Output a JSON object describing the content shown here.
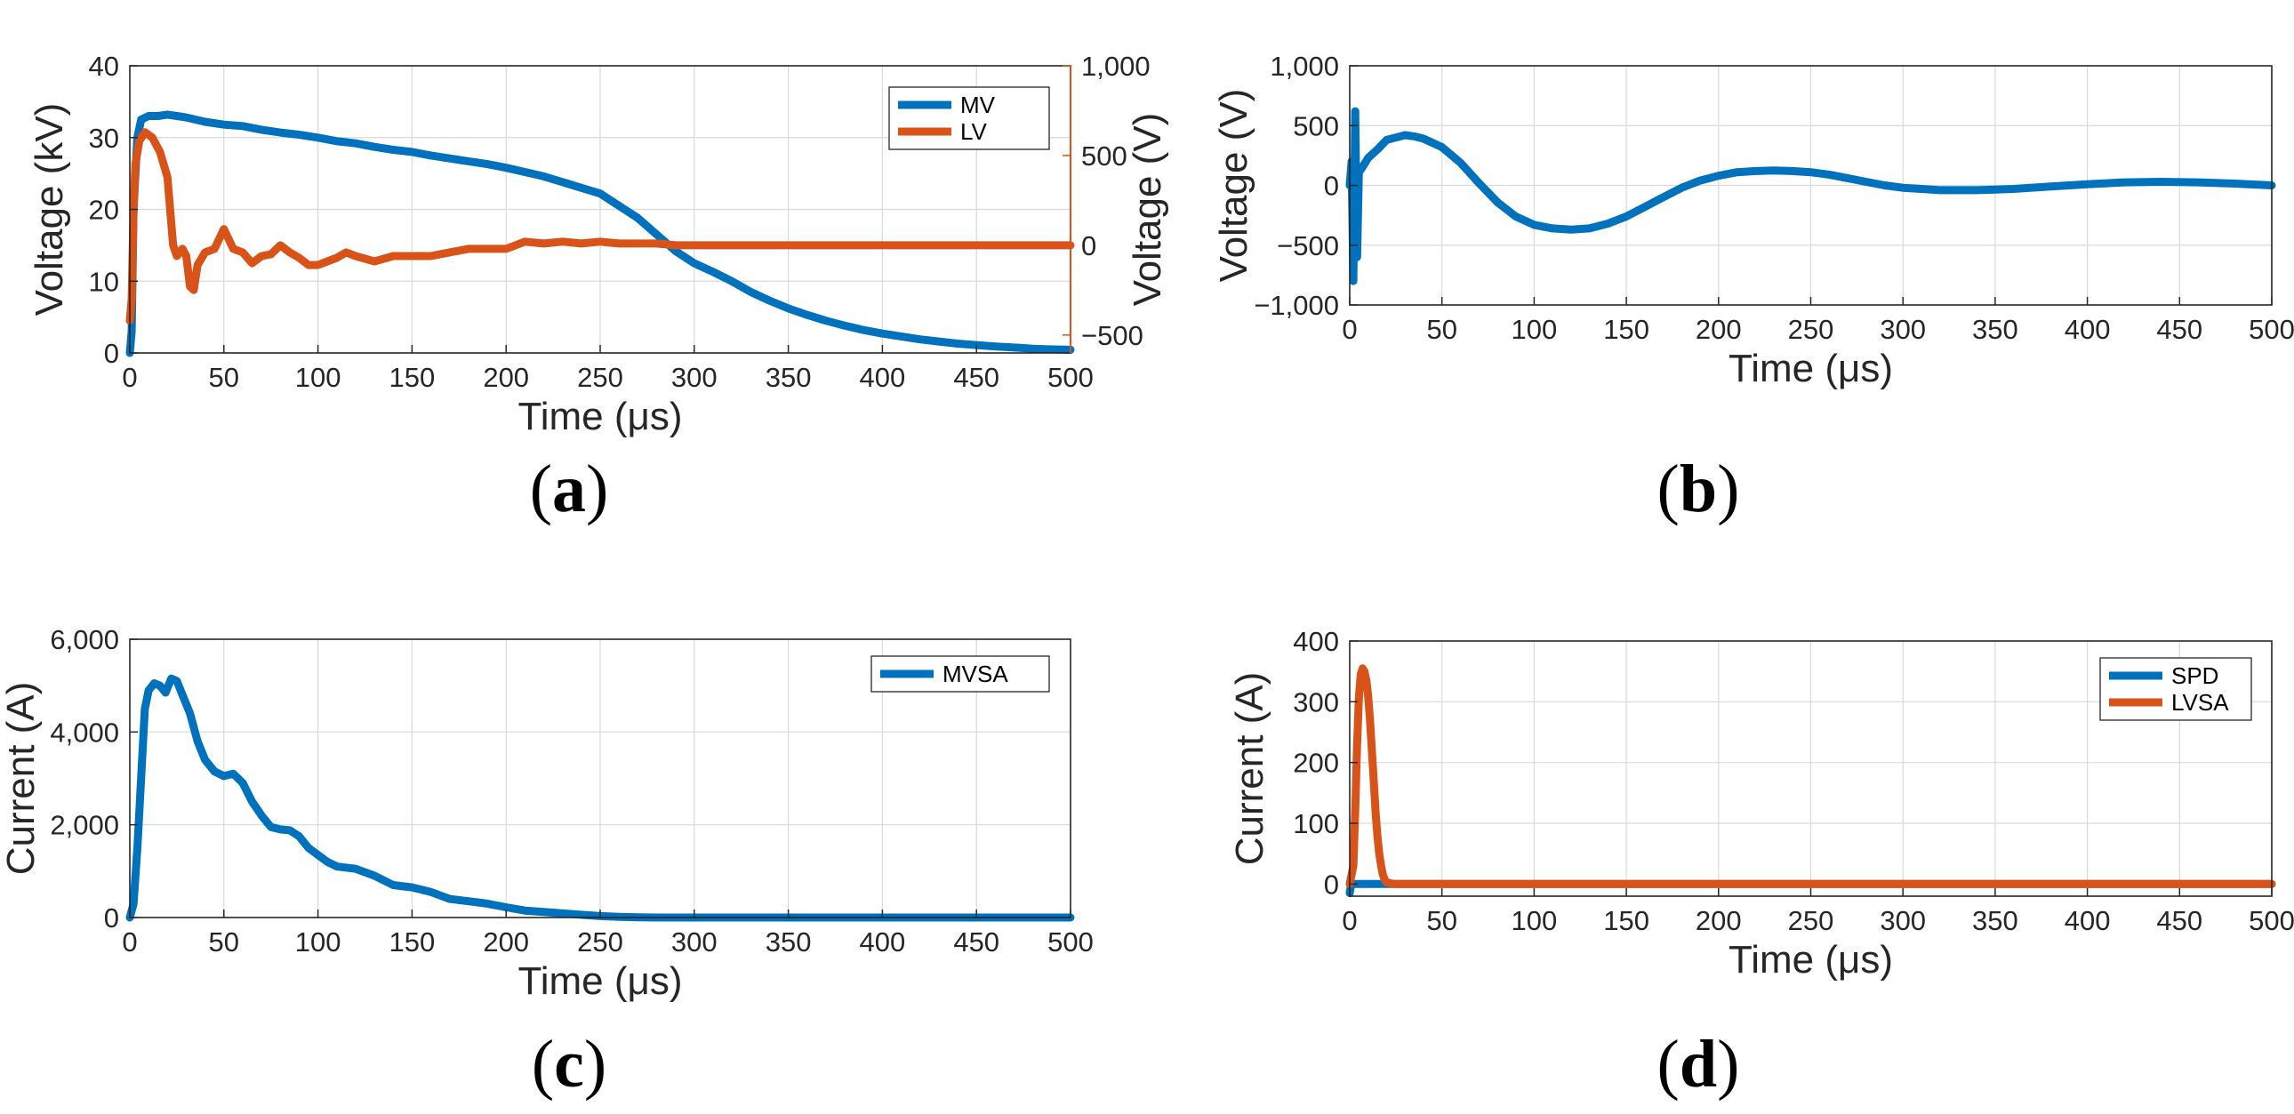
{
  "colors": {
    "blue": "#0072bd",
    "orange": "#d95319",
    "axis": "#262626",
    "grid": "#d9d9d9"
  },
  "chart_data": [
    {
      "panel": "a",
      "panel_label": "a",
      "type": "line",
      "xlabel": "Time (μs)",
      "ylabel": "Voltage (kV)",
      "ylabel_right": "Voltage (V)",
      "xlim": [
        0,
        500
      ],
      "ylim": [
        0,
        40
      ],
      "ylim_right": [
        -600,
        1000
      ],
      "xticks": [
        0,
        50,
        100,
        150,
        200,
        250,
        300,
        350,
        400,
        450,
        500
      ],
      "xtick_labels": [
        "0",
        "50",
        "100",
        "150",
        "200",
        "250",
        "300",
        "350",
        "400",
        "450",
        "500"
      ],
      "yticks": [
        0,
        10,
        20,
        30,
        40
      ],
      "ytick_labels": [
        "0",
        "10",
        "20",
        "30",
        "40"
      ],
      "yticks_right": [
        -500,
        0,
        500,
        1000
      ],
      "ytick_labels_right": [
        "−500",
        "0",
        "500",
        "1,000"
      ],
      "grid": true,
      "legend_position": "top-right",
      "series": [
        {
          "name": "MV",
          "color": "#0072bd",
          "axis": "left",
          "x": [
            0,
            1,
            2,
            4,
            6,
            10,
            15,
            20,
            25,
            30,
            40,
            50,
            60,
            70,
            80,
            90,
            100,
            110,
            120,
            130,
            140,
            150,
            160,
            170,
            180,
            190,
            200,
            210,
            220,
            230,
            240,
            250,
            260,
            270,
            280,
            290,
            300,
            310,
            320,
            330,
            340,
            350,
            360,
            370,
            380,
            390,
            400,
            410,
            420,
            430,
            440,
            450,
            460,
            470,
            480,
            490,
            500
          ],
          "y": [
            0,
            3,
            20,
            30,
            32.5,
            33,
            33,
            33.2,
            33,
            32.8,
            32.2,
            31.8,
            31.6,
            31.1,
            30.7,
            30.4,
            30,
            29.5,
            29.2,
            28.7,
            28.3,
            28,
            27.5,
            27.1,
            26.7,
            26.3,
            25.8,
            25.2,
            24.6,
            23.8,
            23,
            22.2,
            20.5,
            18.8,
            16.5,
            14.2,
            12.5,
            11.3,
            10,
            8.5,
            7.3,
            6.2,
            5.3,
            4.5,
            3.8,
            3.2,
            2.7,
            2.3,
            1.9,
            1.6,
            1.3,
            1.1,
            0.9,
            0.75,
            0.6,
            0.5,
            0.45
          ]
        },
        {
          "name": "LV",
          "color": "#d95319",
          "axis": "right",
          "x": [
            0,
            1,
            2,
            3,
            5,
            8,
            12,
            16,
            20,
            23,
            25,
            28,
            30,
            32,
            34,
            36,
            40,
            45,
            50,
            55,
            60,
            65,
            70,
            75,
            80,
            85,
            90,
            95,
            100,
            105,
            110,
            115,
            120,
            130,
            140,
            150,
            160,
            170,
            180,
            190,
            200,
            210,
            220,
            230,
            240,
            250,
            260,
            270,
            280,
            290,
            300,
            320,
            340,
            360,
            380,
            400,
            420,
            440,
            460,
            480,
            500
          ],
          "y": [
            -420,
            -300,
            200,
            450,
            580,
            630,
            600,
            520,
            380,
            0,
            -60,
            -20,
            -60,
            -230,
            -250,
            -110,
            -40,
            -20,
            90,
            -20,
            -40,
            -100,
            -60,
            -50,
            0,
            -40,
            -70,
            -110,
            -110,
            -90,
            -70,
            -40,
            -60,
            -90,
            -60,
            -60,
            -60,
            -40,
            -20,
            -20,
            -20,
            20,
            10,
            20,
            10,
            20,
            10,
            10,
            10,
            0,
            0,
            0,
            0,
            0,
            0,
            0,
            0,
            0,
            0,
            0,
            0
          ]
        }
      ]
    },
    {
      "panel": "b",
      "panel_label": "b",
      "type": "line",
      "xlabel": "Time (μs)",
      "ylabel": "Voltage (V)",
      "xlim": [
        0,
        500
      ],
      "ylim": [
        -1000,
        1000
      ],
      "xticks": [
        0,
        50,
        100,
        150,
        200,
        250,
        300,
        350,
        400,
        450,
        500
      ],
      "xtick_labels": [
        "0",
        "50",
        "100",
        "150",
        "200",
        "250",
        "300",
        "350",
        "400",
        "450",
        "500"
      ],
      "yticks": [
        -1000,
        -500,
        0,
        500,
        1000
      ],
      "ytick_labels": [
        "−1,000",
        "−500",
        "0",
        "500",
        "1,000"
      ],
      "grid": true,
      "series": [
        {
          "name": "",
          "color": "#0072bd",
          "x": [
            0,
            1,
            2,
            3,
            4,
            5,
            6,
            8,
            10,
            15,
            20,
            25,
            30,
            35,
            40,
            50,
            60,
            70,
            80,
            90,
            100,
            110,
            120,
            130,
            140,
            150,
            160,
            170,
            180,
            190,
            200,
            210,
            220,
            230,
            240,
            250,
            260,
            270,
            280,
            290,
            300,
            310,
            320,
            330,
            340,
            350,
            360,
            380,
            400,
            420,
            440,
            460,
            480,
            500
          ],
          "y": [
            0,
            200,
            -800,
            620,
            -600,
            150,
            130,
            180,
            230,
            300,
            380,
            400,
            420,
            410,
            390,
            320,
            190,
            20,
            -140,
            -260,
            -330,
            -360,
            -370,
            -360,
            -320,
            -260,
            -180,
            -100,
            -20,
            40,
            80,
            110,
            120,
            125,
            120,
            110,
            90,
            60,
            30,
            0,
            -20,
            -30,
            -40,
            -40,
            -40,
            -35,
            -30,
            -10,
            10,
            25,
            30,
            25,
            15,
            0
          ]
        }
      ]
    },
    {
      "panel": "c",
      "panel_label": "c",
      "type": "line",
      "xlabel": "Time (μs)",
      "ylabel": "Current (A)",
      "xlim": [
        0,
        500
      ],
      "ylim": [
        0,
        6000
      ],
      "xticks": [
        0,
        50,
        100,
        150,
        200,
        250,
        300,
        350,
        400,
        450,
        500
      ],
      "xtick_labels": [
        "0",
        "50",
        "100",
        "150",
        "200",
        "250",
        "300",
        "350",
        "400",
        "450",
        "500"
      ],
      "yticks": [
        0,
        2000,
        4000,
        6000
      ],
      "ytick_labels": [
        "0",
        "2,000",
        "4,000",
        "6,000"
      ],
      "grid": true,
      "legend_position": "top-right",
      "series": [
        {
          "name": "MVSA",
          "color": "#0072bd",
          "x": [
            0,
            2,
            4,
            6,
            8,
            10,
            13,
            16,
            19,
            22,
            25,
            28,
            32,
            36,
            40,
            45,
            50,
            55,
            60,
            65,
            70,
            75,
            80,
            85,
            90,
            95,
            100,
            105,
            110,
            120,
            130,
            140,
            150,
            160,
            170,
            180,
            190,
            200,
            210,
            220,
            230,
            240,
            250,
            260,
            270,
            280,
            300,
            350,
            400,
            450,
            500
          ],
          "y": [
            0,
            300,
            1500,
            3000,
            4500,
            4900,
            5050,
            5000,
            4850,
            5150,
            5100,
            4800,
            4400,
            3800,
            3400,
            3150,
            3050,
            3100,
            2900,
            2500,
            2200,
            1950,
            1900,
            1880,
            1750,
            1500,
            1350,
            1200,
            1100,
            1050,
            900,
            700,
            650,
            550,
            400,
            350,
            300,
            220,
            150,
            120,
            90,
            60,
            30,
            15,
            5,
            0,
            0,
            0,
            0,
            0,
            0
          ]
        }
      ]
    },
    {
      "panel": "d",
      "panel_label": "d",
      "type": "line",
      "xlabel": "Time (μs)",
      "ylabel": "Current (A)",
      "xlim": [
        0,
        500
      ],
      "ylim": [
        -20,
        400
      ],
      "xticks": [
        0,
        50,
        100,
        150,
        200,
        250,
        300,
        350,
        400,
        450,
        500
      ],
      "xtick_labels": [
        "0",
        "50",
        "100",
        "150",
        "200",
        "250",
        "300",
        "350",
        "400",
        "450",
        "500"
      ],
      "yticks": [
        0,
        100,
        200,
        300,
        400
      ],
      "ytick_labels": [
        "0",
        "100",
        "200",
        "300",
        "400"
      ],
      "grid": true,
      "legend_position": "top-right",
      "series": [
        {
          "name": "SPD",
          "color": "#0072bd",
          "x": [
            0,
            0.5,
            1,
            2,
            500
          ],
          "y": [
            -15,
            -5,
            0,
            0,
            0
          ]
        },
        {
          "name": "LVSA",
          "color": "#d95319",
          "x": [
            0,
            2,
            3,
            4,
            5,
            6,
            7,
            8,
            9,
            10,
            11,
            12,
            13,
            14,
            15,
            16,
            17,
            18,
            19,
            20,
            22,
            25,
            30,
            500
          ],
          "y": [
            0,
            30,
            120,
            230,
            310,
            345,
            355,
            350,
            335,
            310,
            270,
            220,
            170,
            120,
            80,
            50,
            30,
            15,
            7,
            3,
            1,
            0,
            0,
            0
          ]
        }
      ]
    }
  ]
}
